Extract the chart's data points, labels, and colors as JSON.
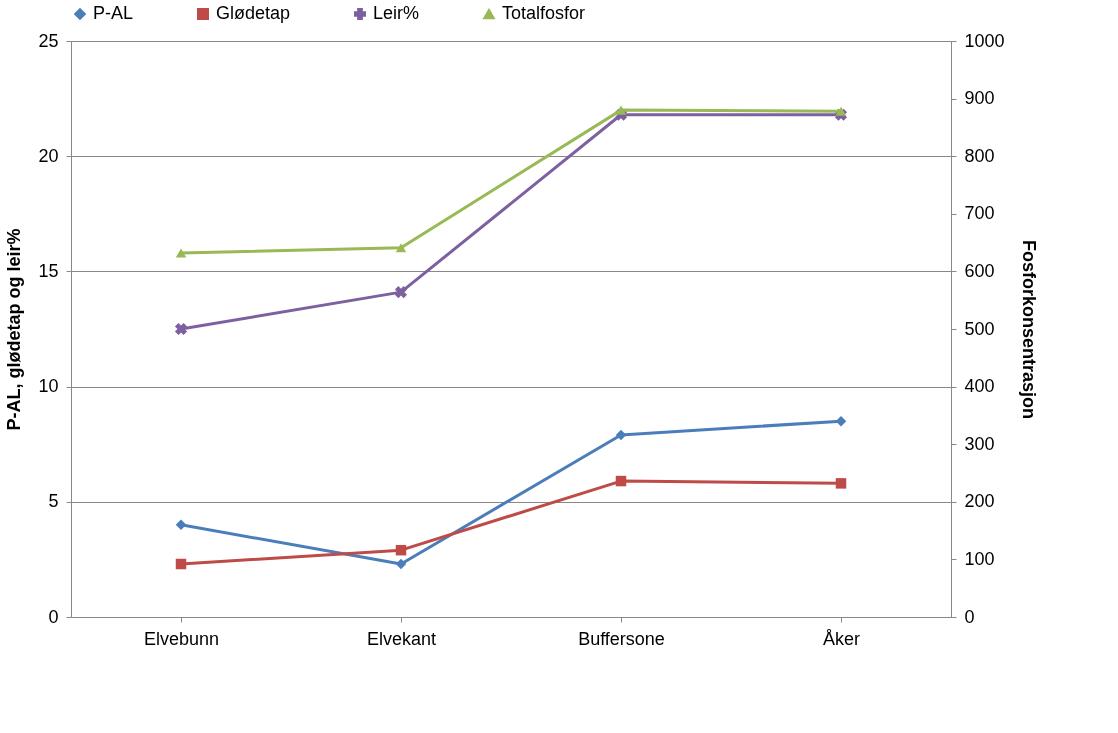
{
  "chart_data": {
    "type": "line",
    "categories": [
      "Elvebunn",
      "Elvekant",
      "Buffersone",
      "Åker"
    ],
    "series": [
      {
        "name": "P-AL",
        "color": "#4a7ebb",
        "marker": "diamond",
        "values": [
          4.0,
          2.3,
          7.9,
          8.5
        ]
      },
      {
        "name": "Glødetap",
        "color": "#be4b48",
        "marker": "square",
        "values": [
          2.3,
          2.9,
          5.9,
          5.8
        ]
      },
      {
        "name": "Leir%",
        "color": "#7d60a0",
        "marker": "cross",
        "values": [
          12.5,
          14.1,
          21.8,
          21.8
        ]
      },
      {
        "name": "Totalfosfor",
        "color": "#98b954",
        "marker": "triangle",
        "axis": "y2",
        "values": [
          632,
          641,
          880,
          878
        ]
      }
    ],
    "ylabel": "P-AL, glødetap og leir%",
    "y2label": "Fosforkonsentrasjon",
    "ylim": [
      0,
      25
    ],
    "yticks": [
      0,
      5,
      10,
      15,
      20,
      25
    ],
    "y2lim": [
      0,
      1000
    ],
    "y2ticks": [
      0,
      100,
      200,
      300,
      400,
      500,
      600,
      700,
      800,
      900,
      1000
    ],
    "grid": "y",
    "legend": "top"
  }
}
